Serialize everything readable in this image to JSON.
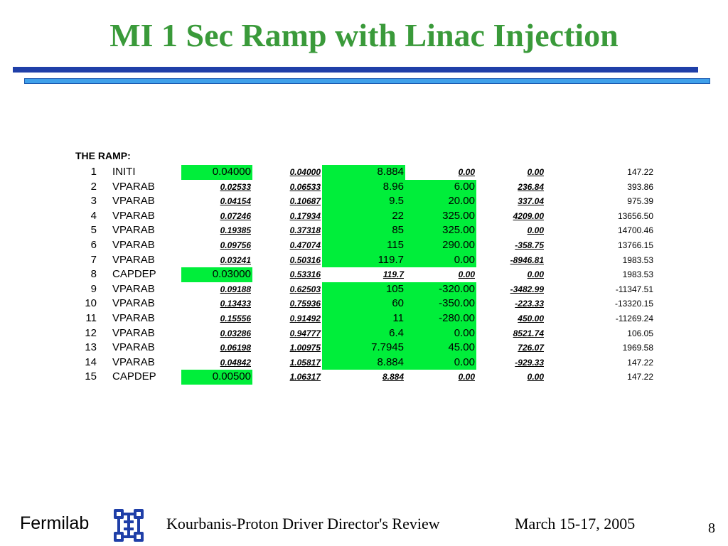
{
  "slide": {
    "title": "MI 1 Sec Ramp with Linac Injection",
    "accent_color": "#3a9a3a",
    "highlight_color": "#00ee3a"
  },
  "table": {
    "label": "THE RAMP:",
    "rows": [
      {
        "idx": "1",
        "name": "INITI",
        "c3": "0.04000",
        "c4": "0.04000",
        "c5": "8.884",
        "c6": "0.00",
        "c7": "0.00",
        "c8": "147.22"
      },
      {
        "idx": "2",
        "name": "VPARAB",
        "c3": "0.02533",
        "c4": "0.06533",
        "c5": "8.96",
        "c6": "6.00",
        "c7": "236.84",
        "c8": "393.86"
      },
      {
        "idx": "3",
        "name": "VPARAB",
        "c3": "0.04154",
        "c4": "0.10687",
        "c5": "9.5",
        "c6": "20.00",
        "c7": "337.04",
        "c8": "975.39"
      },
      {
        "idx": "4",
        "name": "VPARAB",
        "c3": "0.07246",
        "c4": "0.17934",
        "c5": "22",
        "c6": "325.00",
        "c7": "4209.00",
        "c8": "13656.50"
      },
      {
        "idx": "5",
        "name": "VPARAB",
        "c3": "0.19385",
        "c4": "0.37318",
        "c5": "85",
        "c6": "325.00",
        "c7": "0.00",
        "c8": "14700.46"
      },
      {
        "idx": "6",
        "name": "VPARAB",
        "c3": "0.09756",
        "c4": "0.47074",
        "c5": "115",
        "c6": "290.00",
        "c7": "-358.75",
        "c8": "13766.15"
      },
      {
        "idx": "7",
        "name": "VPARAB",
        "c3": "0.03241",
        "c4": "0.50316",
        "c5": "119.7",
        "c6": "0.00",
        "c7": "-8946.81",
        "c8": "1983.53"
      },
      {
        "idx": "8",
        "name": "CAPDEP",
        "c3": "0.03000",
        "c4": "0.53316",
        "c5": "119.7",
        "c6": "0.00",
        "c7": "0.00",
        "c8": "1983.53"
      },
      {
        "idx": "9",
        "name": "VPARAB",
        "c3": "0.09188",
        "c4": "0.62503",
        "c5": "105",
        "c6": "-320.00",
        "c7": "-3482.99",
        "c8": "-11347.51"
      },
      {
        "idx": "10",
        "name": "VPARAB",
        "c3": "0.13433",
        "c4": "0.75936",
        "c5": "60",
        "c6": "-350.00",
        "c7": "-223.33",
        "c8": "-13320.15"
      },
      {
        "idx": "11",
        "name": "VPARAB",
        "c3": "0.15556",
        "c4": "0.91492",
        "c5": "11",
        "c6": "-280.00",
        "c7": "450.00",
        "c8": "-11269.24"
      },
      {
        "idx": "12",
        "name": "VPARAB",
        "c3": "0.03286",
        "c4": "0.94777",
        "c5": "6.4",
        "c6": "0.00",
        "c7": "8521.74",
        "c8": "106.05"
      },
      {
        "idx": "13",
        "name": "VPARAB",
        "c3": "0.06198",
        "c4": "1.00975",
        "c5": "7.7945",
        "c6": "45.00",
        "c7": "726.07",
        "c8": "1969.58"
      },
      {
        "idx": "14",
        "name": "VPARAB",
        "c3": "0.04842",
        "c4": "1.05817",
        "c5": "8.884",
        "c6": "0.00",
        "c7": "-929.33",
        "c8": "147.22"
      },
      {
        "idx": "15",
        "name": "CAPDEP",
        "c3": "0.00500",
        "c4": "1.06317",
        "c5": "8.884",
        "c6": "0.00",
        "c7": "0.00",
        "c8": "147.22"
      }
    ]
  },
  "footer": {
    "logo_text": "Fermilab",
    "logo_icon": "fermilab-logo-icon",
    "review": "Kourbanis-Proton Driver Director's Review",
    "date": "March 15-17, 2005",
    "page": "8"
  }
}
